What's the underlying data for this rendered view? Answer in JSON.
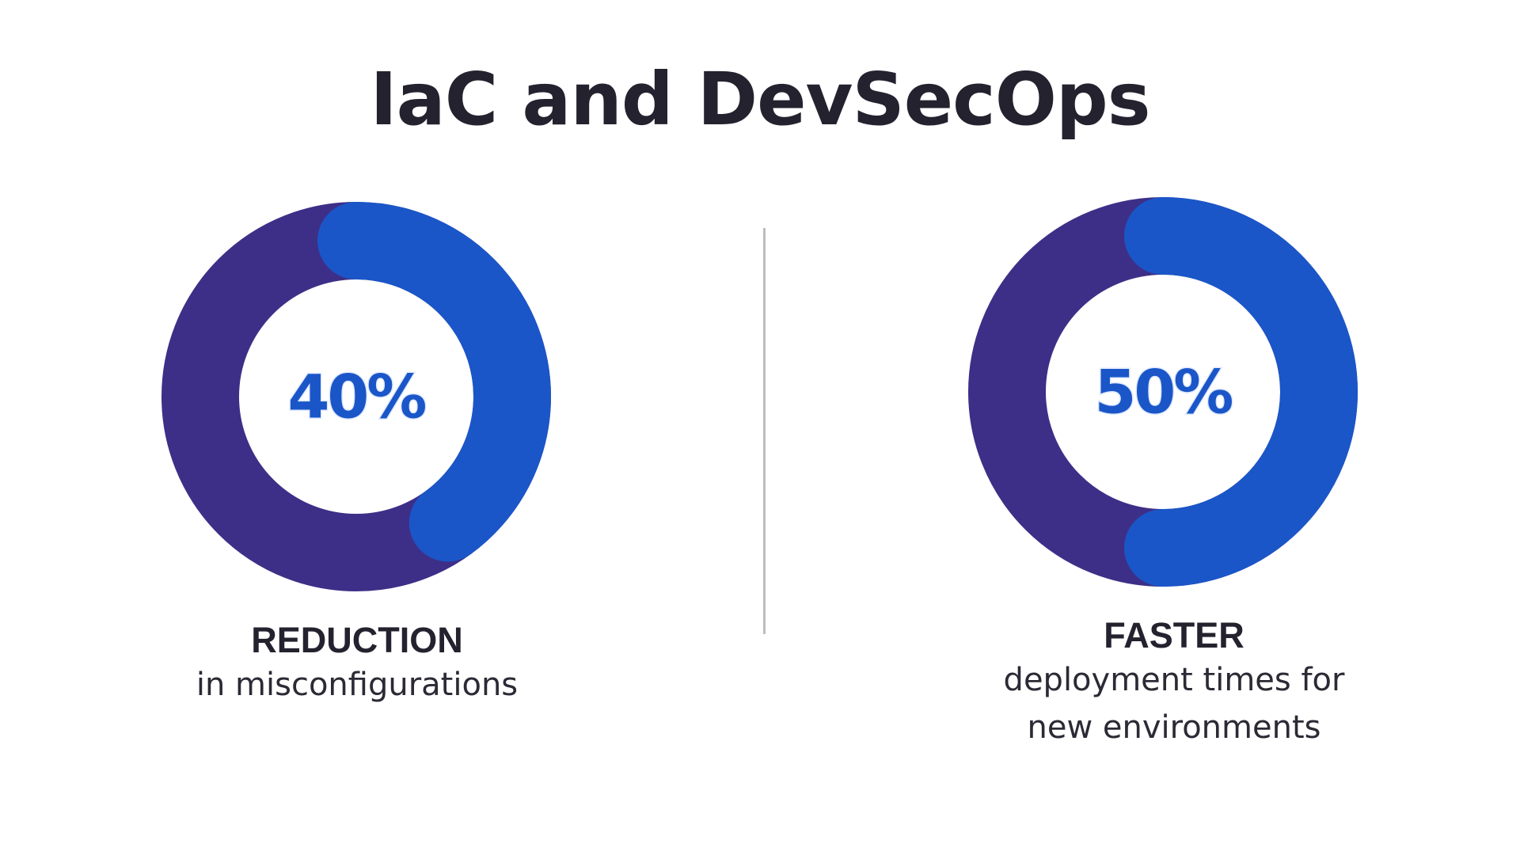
{
  "title": "IaC and DevSecOps",
  "colors": {
    "ring_base": "#3d2f87",
    "ring_highlight": "#1a56c8",
    "percent_text": "#1a56c8",
    "text": "#23222e",
    "divider": "#bdbdbd"
  },
  "chart_data": [
    {
      "type": "pie",
      "value_percent": 40,
      "center_label": "40%",
      "label_title": "REDUCTION",
      "label_text": "in misconfigurations"
    },
    {
      "type": "pie",
      "value_percent": 50,
      "center_label": "50%",
      "label_title": "FASTER",
      "label_text": "deployment times for\nnew environments"
    }
  ]
}
